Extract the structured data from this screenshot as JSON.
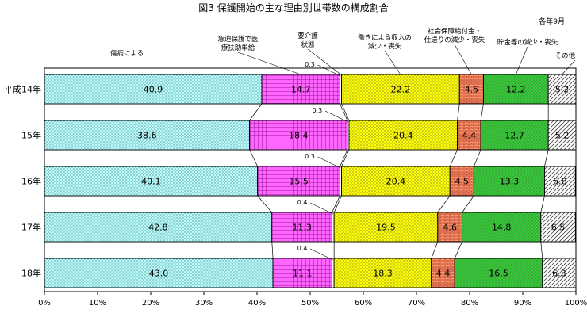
{
  "chart_data": {
    "type": "bar",
    "orientation": "horizontal",
    "stacked": true,
    "title": "図3 保護開始の主な理由別世帯数の構成割合",
    "note": "各年9月",
    "categories": [
      "平成14年",
      "15年",
      "16年",
      "17年",
      "18年"
    ],
    "series": [
      {
        "name": "傷病による",
        "color": "#b3ffff",
        "pattern": "dots",
        "values": [
          40.9,
          38.6,
          40.1,
          42.8,
          43.0
        ]
      },
      {
        "name": "急迫保護で医療扶助単給",
        "color": "#ff66ff",
        "pattern": "grid",
        "values": [
          14.7,
          18.4,
          15.5,
          11.3,
          11.1
        ]
      },
      {
        "name": "要介護状態",
        "color": "#ffffff",
        "pattern": "none",
        "values": [
          0.3,
          0.3,
          0.3,
          0.4,
          0.4
        ],
        "value_labels": [
          "0.3",
          "0.3",
          "0.3",
          "0.4",
          "0.4"
        ]
      },
      {
        "name": "働きによる収入の減少・喪失",
        "color": "#ffff00",
        "pattern": "dots",
        "values": [
          22.2,
          20.4,
          20.4,
          19.5,
          18.3
        ]
      },
      {
        "name": "社会保障給付金・仕送りの減少・喪失",
        "color": "#ff9966",
        "pattern": "brick",
        "values": [
          4.5,
          4.4,
          4.5,
          4.6,
          4.4
        ]
      },
      {
        "name": "貯金等の減少・喪失",
        "color": "#33cc33",
        "pattern": "dots",
        "values": [
          12.2,
          12.7,
          13.3,
          14.8,
          16.5
        ]
      },
      {
        "name": "その他",
        "color": "#ffffff",
        "pattern": "hatch",
        "values": [
          5.2,
          5.2,
          5.8,
          6.5,
          6.3
        ]
      }
    ],
    "xlim": [
      0,
      100
    ],
    "x_ticks": [
      "0%",
      "10%",
      "20%",
      "30%",
      "40%",
      "50%",
      "60%",
      "70%",
      "80%",
      "90%",
      "100%"
    ],
    "legend": "labels above top bar",
    "grid": false
  }
}
